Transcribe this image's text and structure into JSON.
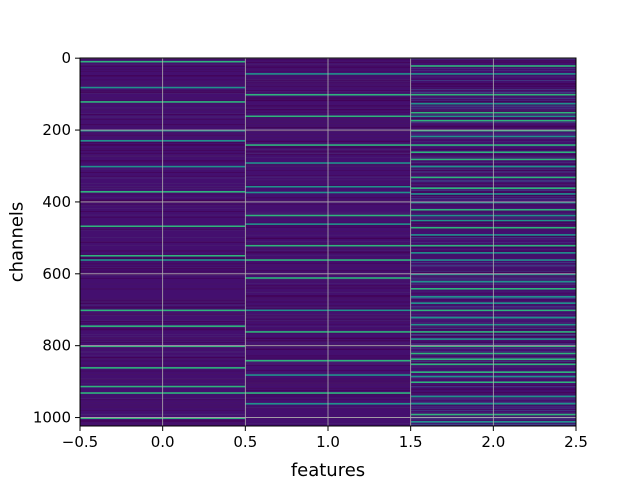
{
  "chart_data": {
    "type": "heatmap",
    "title": "",
    "xlabel": "features",
    "ylabel": "channels",
    "xlim": [
      -0.5,
      2.5
    ],
    "ylim": [
      1023.5,
      -0.5
    ],
    "n_rows": 1024,
    "n_cols": 3,
    "x_ticks": [
      "−0.5",
      "0.0",
      "0.5",
      "1.0",
      "1.5",
      "2.0",
      "2.5"
    ],
    "y_ticks": [
      "0",
      "200",
      "400",
      "600",
      "800",
      "1000"
    ],
    "grid": true,
    "colormap": "viridis",
    "background_color": "#440f6f",
    "columns": [
      {
        "feature": 0,
        "highlighted_channels": [
          8,
          80,
          120,
          200,
          228,
          300,
          370,
          466,
          548,
          560,
          700,
          744,
          800,
          860,
          912,
          930,
          1000
        ]
      },
      {
        "feature": 1,
        "highlighted_channels": [
          42,
          100,
          160,
          240,
          290,
          356,
          372,
          436,
          460,
          520,
          560,
          610,
          700,
          760,
          840,
          880,
          930,
          960
        ]
      },
      {
        "feature": 2,
        "highlighted_channels": [
          20,
          42,
          100,
          125,
          150,
          160,
          172,
          200,
          216,
          240,
          260,
          280,
          300,
          330,
          360,
          376,
          400,
          420,
          436,
          450,
          470,
          490,
          520,
          540,
          560,
          600,
          620,
          640,
          662,
          680,
          700,
          720,
          740,
          760,
          780,
          800,
          820,
          836,
          850,
          872,
          884,
          900,
          940,
          960,
          990,
          1010
        ]
      }
    ]
  }
}
